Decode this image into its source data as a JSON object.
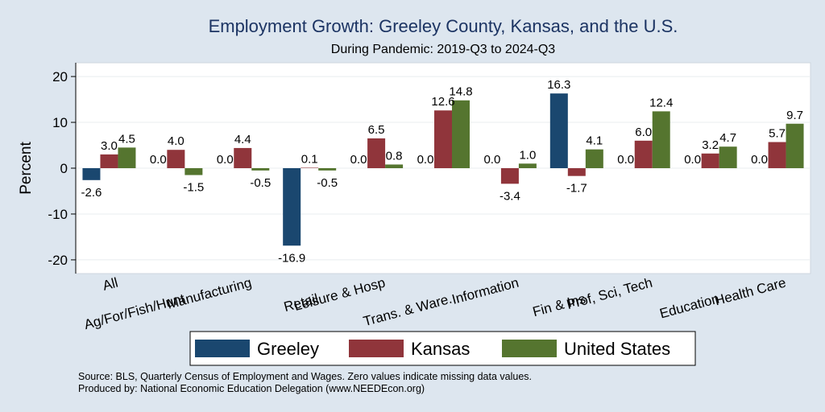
{
  "chart_data": {
    "type": "bar",
    "title": "Employment Growth: Greeley County, Kansas, and the U.S.",
    "subtitle": "During Pandemic: 2019-Q3 to 2024-Q3",
    "ylabel": "Percent",
    "xlabel": "",
    "ylim": [
      -23,
      23
    ],
    "yticks": [
      -20,
      -10,
      0,
      10,
      20
    ],
    "categories": [
      "All",
      "Ag/For/Fish/Hunt",
      "Manufacturing",
      "Retail",
      "Leisure & Hosp",
      "Trans. & Ware.",
      "Information",
      "Fin & Ins",
      "Prof, Sci, Tech",
      "Education",
      "Health Care"
    ],
    "series": [
      {
        "name": "Greeley",
        "color": "#1a476f",
        "values": [
          -2.6,
          0.0,
          0.0,
          -16.9,
          0.0,
          0.0,
          0.0,
          16.3,
          0.0,
          0.0,
          0.0
        ],
        "labels": [
          "-2.6",
          "0.0",
          "0.0",
          "-16.9",
          "0.0",
          "0.0",
          "0.0",
          "16.3",
          "0.0",
          "0.0",
          "0.0"
        ]
      },
      {
        "name": "Kansas",
        "color": "#90353b",
        "values": [
          3.0,
          4.0,
          4.4,
          0.1,
          6.5,
          12.6,
          -3.4,
          -1.7,
          6.0,
          3.2,
          5.7
        ],
        "labels": [
          "3.0",
          "4.0",
          "4.4",
          "0.1",
          "6.5",
          "12.6",
          "-3.4",
          "-1.7",
          "6.0",
          "3.2",
          "5.7"
        ]
      },
      {
        "name": "United States",
        "color": "#55752f",
        "values": [
          4.5,
          -1.5,
          -0.5,
          -0.5,
          0.8,
          14.8,
          1.0,
          4.1,
          12.4,
          4.7,
          9.7
        ],
        "labels": [
          "4.5",
          "-1.5",
          "-0.5",
          "-0.5",
          "0.8",
          "14.8",
          "1.0",
          "4.1",
          "12.4",
          "4.7",
          "9.7"
        ]
      }
    ],
    "legend_position": "bottom",
    "grid": true
  },
  "notes": {
    "source": "Source: BLS, Quarterly Census of Employment and Wages. Zero values indicate missing data values.",
    "produced": "Produced by: National Economic Education Delegation (www.NEEDEcon.org)"
  },
  "colors": {
    "background": "#dde6ef",
    "plot_background": "#ffffff",
    "title": "#1c3463"
  }
}
